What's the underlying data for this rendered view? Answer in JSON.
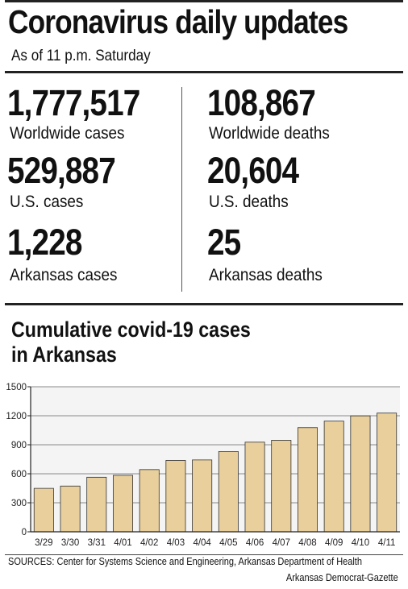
{
  "header": {
    "title": "Coronavirus daily updates",
    "subtitle": "As of 11 p.m. Saturday"
  },
  "stats": {
    "worldwide_cases": {
      "value": "1,777,517",
      "label": "Worldwide cases"
    },
    "worldwide_deaths": {
      "value": "108,867",
      "label": "Worldwide deaths"
    },
    "us_cases": {
      "value": "529,887",
      "label": "U.S. cases"
    },
    "us_deaths": {
      "value": "20,604",
      "label": "U.S. deaths"
    },
    "arkansas_cases": {
      "value": "1,228",
      "label": "Arkansas cases"
    },
    "arkansas_deaths": {
      "value": "25",
      "label": "Arkansas deaths"
    }
  },
  "chart_data": {
    "type": "bar",
    "title": "Cumulative covid-19 cases\nin Arkansas",
    "categories": [
      "3/29",
      "3/30",
      "3/31",
      "4/01",
      "4/02",
      "4/03",
      "4/04",
      "4/05",
      "4/06",
      "4/07",
      "4/08",
      "4/09",
      "4/10",
      "4/11"
    ],
    "values": [
      449,
      473,
      564,
      584,
      643,
      738,
      743,
      830,
      927,
      946,
      1077,
      1145,
      1199,
      1228
    ],
    "ylim": [
      0,
      1500
    ],
    "yticks": [
      0,
      300,
      600,
      900,
      1200,
      1500
    ],
    "ytick_labels": [
      "0",
      "300",
      "600",
      "900",
      "1200",
      "1500"
    ],
    "grid": true,
    "bar_color": "#e8cf9c",
    "plot_background": "#f4f4f4"
  },
  "footer": {
    "sources": "SOURCES: Center for Systems Science and Engineering, Arkansas Department of Health",
    "credit": "Arkansas Democrat-Gazette"
  }
}
